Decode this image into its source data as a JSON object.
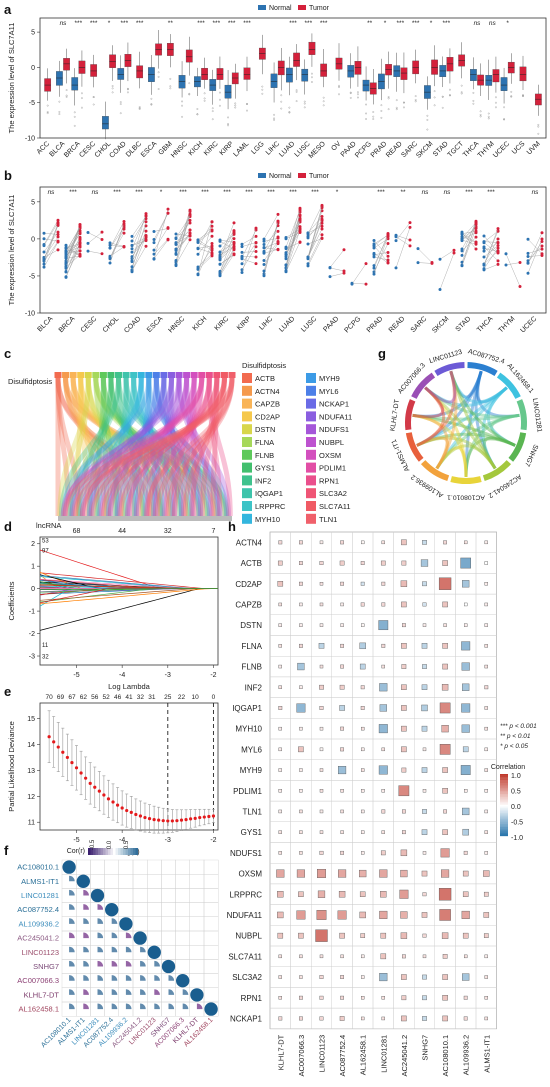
{
  "panels": {
    "a": "a",
    "b": "b",
    "c": "c",
    "d": "d",
    "e": "e",
    "f": "f",
    "g": "g",
    "h": "h"
  },
  "colors": {
    "normal": "#2d73b1",
    "tumor": "#d4213b",
    "pos": "#d6604d",
    "neg": "#2c7bb6"
  },
  "chart_data": [
    {
      "id": "a",
      "type": "box",
      "ylabel": "The expression level of SLC7A11",
      "legend": [
        "Normal",
        "Tumor"
      ],
      "legend_position": "top",
      "ylim": [
        -10,
        7
      ],
      "yticks": [
        -10,
        -5,
        0,
        5
      ],
      "categories": [
        "ACC",
        "BLCA",
        "BRCA",
        "CESC",
        "CHOL",
        "COAD",
        "DLBC",
        "ESCA",
        "GBM",
        "HNSC",
        "KICH",
        "KIRC",
        "KIRP",
        "LAML",
        "LGG",
        "LIHC",
        "LUAD",
        "LUSC",
        "MESO",
        "OV",
        "PAAD",
        "PCPG",
        "PRAD",
        "READ",
        "SARC",
        "SKCM",
        "STAD",
        "TGCT",
        "THCA",
        "THYM",
        "UCEC",
        "UCS",
        "UVM"
      ],
      "significance": [
        "",
        "ns",
        "***",
        "***",
        "*",
        "***",
        "***",
        "",
        "**",
        "",
        "***",
        "***",
        "***",
        "***",
        "",
        "",
        "***",
        "***",
        "***",
        "",
        "",
        "**",
        "*",
        "***",
        "***",
        "*",
        "***",
        "",
        "ns",
        "ns",
        "*",
        "",
        ""
      ],
      "normal_median": [
        null,
        -1.5,
        -2.5,
        null,
        -8.0,
        -1.0,
        null,
        -1.0,
        null,
        -2.0,
        -2.0,
        -2.5,
        -3.5,
        null,
        null,
        -2.0,
        -1.0,
        -1.0,
        null,
        null,
        -0.5,
        -2.5,
        -2.0,
        -0.5,
        null,
        -3.5,
        -0.5,
        null,
        -1.0,
        -1.8,
        -2.5,
        null,
        null
      ],
      "tumor_median": [
        -2.5,
        0.5,
        0.0,
        -0.5,
        0.8,
        1.0,
        -0.5,
        2.5,
        2.5,
        1.5,
        -1.0,
        -1.0,
        -1.5,
        -1.0,
        2.0,
        0.0,
        1.0,
        2.5,
        -0.5,
        0.5,
        0.0,
        -3.0,
        -0.3,
        -0.8,
        0.0,
        0.0,
        0.5,
        1.0,
        -1.8,
        -1.0,
        0.0,
        -1.0,
        -4.5
      ]
    },
    {
      "id": "b",
      "type": "paired",
      "ylabel": "The expression level of SLC7A11",
      "legend": [
        "Normal",
        "Tumor"
      ],
      "legend_position": "top",
      "ylim": [
        -10,
        7
      ],
      "yticks": [
        -10,
        -5,
        0,
        5
      ],
      "categories": [
        "BLCA",
        "BRCA",
        "CESC",
        "CHOL",
        "COAD",
        "ESCA",
        "HNSC",
        "KICH",
        "KIRC",
        "KIRP",
        "LIHC",
        "LUAD",
        "LUSC",
        "PAAD",
        "PCPG",
        "PRAD",
        "READ",
        "SARC",
        "SKCM",
        "STAD",
        "THCA",
        "THYM",
        "UCEC"
      ],
      "significance": [
        "ns",
        "***",
        "ns",
        "***",
        "***",
        "*",
        "***",
        "***",
        "***",
        "***",
        "***",
        "***",
        "***",
        "*",
        "",
        "***",
        "**",
        "ns",
        "ns",
        "***",
        "***",
        "",
        "ns"
      ],
      "normal_mean": [
        -1.5,
        -3.0,
        -1.5,
        -3.0,
        -2.0,
        -1.0,
        -1.5,
        -2.5,
        -2.5,
        -3.0,
        -2.5,
        -2.0,
        -1.5,
        -4.5,
        -6.5,
        -2.5,
        -1.5,
        -3.5,
        -4.5,
        -1.5,
        -2.0,
        -3.5,
        -2.5
      ],
      "tumor_mean": [
        0.5,
        0.0,
        0.0,
        1.0,
        1.0,
        2.0,
        2.0,
        0.0,
        0.0,
        -1.0,
        1.0,
        2.0,
        2.5,
        -2.5,
        -4.0,
        -1.0,
        0.0,
        -3.0,
        -4.0,
        1.0,
        -1.0,
        -4.0,
        0.0
      ],
      "n_pairs": [
        12,
        26,
        3,
        9,
        14,
        7,
        16,
        14,
        18,
        9,
        13,
        17,
        14,
        3,
        2,
        12,
        4,
        2,
        2,
        15,
        14,
        2,
        7
      ]
    },
    {
      "id": "c",
      "type": "sankey",
      "top_node": "Disulfidptosis",
      "bottom_node": "lncRNA",
      "legend_title": "Disulfidptosis",
      "genes": [
        "ACTB",
        "ACTN4",
        "CAPZB",
        "CD2AP",
        "DSTN",
        "FLNA",
        "FLNB",
        "GYS1",
        "INF2",
        "IQGAP1",
        "LRPPRC",
        "MYH10",
        "MYH9",
        "MYL6",
        "NCKAP1",
        "NDUFA11",
        "NDUFS1",
        "NUBPL",
        "OXSM",
        "PDLIM1",
        "RPN1",
        "SLC3A2",
        "SLC7A11",
        "TLN1"
      ],
      "gene_colors": [
        "#f26b4f",
        "#f59a4d",
        "#f9b457",
        "#f5c84c",
        "#d8d64b",
        "#a6d85a",
        "#5ec95b",
        "#43bf6e",
        "#3fc28d",
        "#3ec4ab",
        "#3dc3c6",
        "#33b6de",
        "#3c9be6",
        "#4c7fe8",
        "#6a6be6",
        "#8a5ee0",
        "#a556d9",
        "#bd52cf",
        "#d34fbe",
        "#e24ea5",
        "#ea4f8c",
        "#ef5475",
        "#f05a64",
        "#f0606b"
      ]
    },
    {
      "id": "d",
      "type": "line",
      "xlabel": "Log Lambda",
      "ylabel": "Coefficients",
      "xlim": [
        -5.8,
        -1.9
      ],
      "ylim": [
        -3.4,
        2.3
      ],
      "xticks": [
        -5,
        -4,
        -3,
        -2
      ],
      "yticks": [
        -3,
        -2,
        -1,
        0,
        1,
        2
      ],
      "top_ticks": [
        "68",
        "44",
        "32",
        "7"
      ],
      "top_tick_x": [
        -5.0,
        -4.0,
        -3.0,
        -2.0
      ],
      "end_labels": [
        "53",
        "97",
        "11",
        "32"
      ]
    },
    {
      "id": "e",
      "type": "errorbar",
      "xlabel": "Log(λ)",
      "ylabel": "Partial Likelihood Deviance",
      "xlim": [
        -5.8,
        -1.9
      ],
      "ylim": [
        10.7,
        15.6
      ],
      "xticks": [
        -5,
        -4,
        -3,
        -2
      ],
      "yticks": [
        11,
        12,
        13,
        14,
        15
      ],
      "top_ticks": [
        "70",
        "69",
        "67",
        "62",
        "56",
        "52",
        "46",
        "41",
        "32",
        "31",
        "25",
        "22",
        "10",
        "0"
      ],
      "top_tick_x": [
        -5.6,
        -5.35,
        -5.1,
        -4.85,
        -4.6,
        -4.35,
        -4.1,
        -3.85,
        -3.6,
        -3.35,
        -3.0,
        -2.7,
        -2.4,
        -2.0
      ],
      "vlines": [
        -3.0,
        -2.0
      ],
      "x": [
        -5.6,
        -5.5,
        -5.4,
        -5.3,
        -5.2,
        -5.1,
        -5.0,
        -4.9,
        -4.8,
        -4.7,
        -4.6,
        -4.5,
        -4.4,
        -4.3,
        -4.2,
        -4.1,
        -4.0,
        -3.9,
        -3.8,
        -3.7,
        -3.6,
        -3.5,
        -3.4,
        -3.3,
        -3.2,
        -3.1,
        -3.0,
        -2.9,
        -2.8,
        -2.7,
        -2.6,
        -2.5,
        -2.4,
        -2.3,
        -2.2,
        -2.1,
        -2.0
      ],
      "y": [
        14.3,
        14.1,
        13.9,
        13.7,
        13.5,
        13.3,
        13.1,
        12.9,
        12.7,
        12.5,
        12.35,
        12.2,
        12.05,
        11.9,
        11.78,
        11.66,
        11.55,
        11.45,
        11.38,
        11.3,
        11.24,
        11.18,
        11.14,
        11.1,
        11.08,
        11.06,
        11.05,
        11.05,
        11.06,
        11.08,
        11.1,
        11.13,
        11.15,
        11.18,
        11.2,
        11.22,
        11.24
      ],
      "err": [
        1.0,
        0.98,
        0.95,
        0.93,
        0.9,
        0.88,
        0.86,
        0.84,
        0.82,
        0.8,
        0.78,
        0.76,
        0.74,
        0.72,
        0.7,
        0.68,
        0.66,
        0.64,
        0.62,
        0.6,
        0.58,
        0.56,
        0.54,
        0.52,
        0.5,
        0.48,
        0.46,
        0.44,
        0.42,
        0.4,
        0.38,
        0.36,
        0.34,
        0.32,
        0.3,
        0.28,
        0.26
      ]
    },
    {
      "id": "f",
      "type": "corrplot",
      "legend_title": "Cor(r)",
      "legend_ticks": [
        "-0.5",
        "0.0",
        "0.5"
      ],
      "labels": [
        "AC108010.1",
        "ALMS1-IT1",
        "LINC01281",
        "AC087752.4",
        "AL109936.2",
        "AC245041.2",
        "LINC01123",
        "SNHG7",
        "AC007066.3",
        "KLHL7-DT",
        "AL162458.1"
      ],
      "label_colors": [
        "#2a6f97",
        "#2a6f97",
        "#3c8dbc",
        "#2a6f97",
        "#3c8dbc",
        "#8b5a83",
        "#9b4d6b",
        "#7b4a78",
        "#8b3f73",
        "#7b3a6a",
        "#a0435d"
      ]
    },
    {
      "id": "g",
      "type": "chord",
      "labels": [
        "AC087752.4",
        "AL162458.1",
        "LINC01281",
        "SNHG7",
        "AC245041.2",
        "AC108010.1",
        "AL109936.2",
        "ALMS1-IT1",
        "KLHL7-DT",
        "AC007066.3",
        "LINC01123"
      ],
      "colors": [
        "#2b7fd0",
        "#3ec2e0",
        "#66c78c",
        "#5ab552",
        "#a4c83c",
        "#e8d43a",
        "#f2a23c",
        "#e8603c",
        "#d23a48",
        "#9a4fb5",
        "#6c5ad6"
      ]
    },
    {
      "id": "h",
      "type": "heatmap",
      "legend_title": "Correlation",
      "legend_ticks": [
        "1.0",
        "0.5",
        "0.0",
        "-0.5",
        "-1.0"
      ],
      "sig_legend": [
        "*** p < 0.001",
        "** p < 0.01",
        "* p < 0.05"
      ],
      "rows": [
        "ACTN4",
        "ACTB",
        "CD2AP",
        "CAPZB",
        "DSTN",
        "FLNA",
        "FLNB",
        "INF2",
        "IQGAP1",
        "MYH10",
        "MYL6",
        "MYH9",
        "PDLIM1",
        "TLN1",
        "GYS1",
        "NDUFS1",
        "OXSM",
        "LRPPRC",
        "NDUFA11",
        "NUBPL",
        "SLC7A11",
        "SLC3A2",
        "RPN1",
        "NCKAP1"
      ],
      "cols": [
        "KLHL7-DT",
        "AC007066.3",
        "LINC01123",
        "AC087752.4",
        "AL162458.1",
        "LINC01281",
        "AC245041.2",
        "SNHG7",
        "AC108010.1",
        "AL109936.2",
        "ALMS1-IT1"
      ],
      "values": [
        [
          0.2,
          0.2,
          0.1,
          0.2,
          0.05,
          0.15,
          0.3,
          -0.25,
          0.2,
          0.15,
          0.1
        ],
        [
          0.25,
          0.2,
          0.2,
          0.25,
          0.2,
          0.25,
          0.25,
          -0.4,
          0.3,
          -0.6,
          0.0
        ],
        [
          0.3,
          0.2,
          0.15,
          0.2,
          -0.2,
          0.2,
          0.35,
          -0.25,
          0.7,
          -0.4,
          0.1
        ],
        [
          0.15,
          0.1,
          0.15,
          0.1,
          0.2,
          0.2,
          0.3,
          -0.2,
          0.3,
          0.0,
          0.1
        ],
        [
          0.1,
          0.1,
          0.1,
          0.1,
          0.05,
          -0.55,
          0.2,
          0.1,
          0.15,
          0.1,
          0.1
        ],
        [
          0.15,
          0.2,
          -0.3,
          0.2,
          -0.35,
          0.2,
          0.3,
          -0.3,
          0.3,
          -0.5,
          0.15
        ],
        [
          0.1,
          -0.4,
          0.15,
          0.2,
          -0.3,
          0.15,
          0.25,
          -0.25,
          0.3,
          -0.45,
          0.15
        ],
        [
          0.15,
          0.1,
          0.25,
          0.25,
          0.2,
          -0.45,
          0.3,
          -0.3,
          0.35,
          -0.4,
          0.2
        ],
        [
          0.2,
          -0.5,
          0.2,
          -0.3,
          0.2,
          -0.4,
          0.3,
          -0.35,
          0.6,
          -0.5,
          0.15
        ],
        [
          0.1,
          0.1,
          0.1,
          0.2,
          0.15,
          -0.5,
          0.3,
          -0.3,
          0.4,
          -0.45,
          0.15
        ],
        [
          0.1,
          0.3,
          0.05,
          0.2,
          0.1,
          0.15,
          0.3,
          0.1,
          0.6,
          -0.3,
          0.1
        ],
        [
          0.1,
          0.1,
          0.15,
          -0.45,
          0.15,
          -0.5,
          0.25,
          -0.3,
          0.3,
          -0.55,
          0.15
        ],
        [
          0.1,
          0.1,
          0.15,
          0.15,
          0.1,
          0.1,
          0.6,
          0.1,
          0.3,
          0.1,
          0.1
        ],
        [
          0.1,
          0.15,
          0.1,
          0.15,
          0.1,
          0.2,
          0.2,
          -0.25,
          0.2,
          -0.4,
          0.1
        ],
        [
          0.15,
          0.15,
          0.15,
          0.15,
          0.1,
          0.15,
          0.2,
          -0.3,
          0.3,
          -0.35,
          0.15
        ],
        [
          0.15,
          0.15,
          0.2,
          0.2,
          0.1,
          0.25,
          0.35,
          0.1,
          0.5,
          0.2,
          0.1
        ],
        [
          0.45,
          0.45,
          0.5,
          0.45,
          0.4,
          0.45,
          0.4,
          0.3,
          0.45,
          0.3,
          0.35
        ],
        [
          0.35,
          0.3,
          0.4,
          0.35,
          0.3,
          0.35,
          0.5,
          0.2,
          0.7,
          0.3,
          0.25
        ],
        [
          0.35,
          0.5,
          0.55,
          0.5,
          0.35,
          0.45,
          0.4,
          0.3,
          0.65,
          0.45,
          0.3
        ],
        [
          0.3,
          0.3,
          0.7,
          0.3,
          0.25,
          0.3,
          0.35,
          0.2,
          0.35,
          0.3,
          0.25
        ],
        [
          0.15,
          0.15,
          0.15,
          0.15,
          0.1,
          0.3,
          0.2,
          0.15,
          0.25,
          0.15,
          0.1
        ],
        [
          0.15,
          0.15,
          0.2,
          0.2,
          0.1,
          -0.45,
          0.3,
          -0.25,
          0.3,
          -0.4,
          0.15
        ],
        [
          0.15,
          0.2,
          0.2,
          0.2,
          0.15,
          0.15,
          0.25,
          -0.25,
          0.3,
          0.2,
          0.15
        ],
        [
          0.2,
          0.2,
          0.2,
          0.25,
          0.15,
          0.15,
          0.3,
          -0.25,
          0.3,
          0.2,
          0.15
        ]
      ]
    }
  ]
}
